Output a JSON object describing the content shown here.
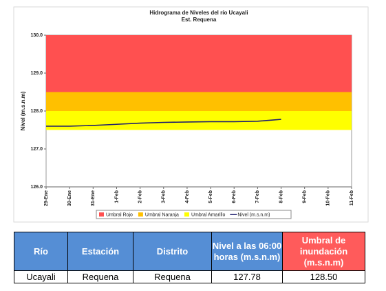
{
  "chart_data": {
    "type": "line",
    "title": "Hidrograma de Niveles del río Ucayali",
    "subtitle": "Est. Requena",
    "y_label": "Nivel (m.s.n.m)",
    "categories": [
      "29-Ene",
      "30-Ene",
      "31-Ene",
      "1-Feb",
      "2-Feb",
      "3-Feb",
      "4-Feb",
      "5-Feb",
      "6-Feb",
      "7-Feb",
      "8-Feb",
      "9-Feb",
      "10-Feb",
      "11-Feb"
    ],
    "ylim": [
      126,
      130
    ],
    "yticks": [
      {
        "value": 126,
        "label": "126.0"
      },
      {
        "value": 127,
        "label": "127.0"
      },
      {
        "value": 128,
        "label": "128.0"
      },
      {
        "value": 129,
        "label": "129.0"
      },
      {
        "value": 130,
        "label": "130.0"
      }
    ],
    "bands": [
      {
        "name": "Umbral Rojo",
        "color": "#ff5050",
        "from": 128.5,
        "to": 130
      },
      {
        "name": "Umbral Naranja",
        "color": "#ffc000",
        "from": 128.0,
        "to": 128.5
      },
      {
        "name": "Umbral Amarillo",
        "color": "#ffff00",
        "from": 127.5,
        "to": 128.0
      }
    ],
    "series": [
      {
        "name": "Nivel (m.s.n.m)",
        "color": "#1f1f6e",
        "values": [
          127.6,
          127.6,
          127.62,
          127.65,
          127.68,
          127.7,
          127.71,
          127.72,
          127.72,
          127.73,
          127.78,
          null,
          null,
          null
        ]
      }
    ]
  },
  "table": {
    "header": [
      "Río",
      "Estación",
      "Distrito",
      "Nivel a las 06:00 horas (m.s.n.m)",
      "Umbral de inundación (m.s.n.m)"
    ],
    "rows": [
      [
        "Ucayali",
        "Requena",
        "Requena",
        "127.78",
        "128.50"
      ]
    ]
  }
}
